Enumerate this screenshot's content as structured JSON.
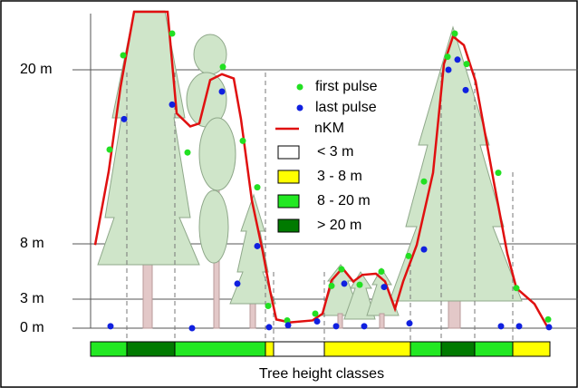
{
  "chart_data": {
    "type": "scatter",
    "xlabel": "Tree height classes",
    "xlim": [
      0,
      510
    ],
    "ylim": [
      0,
      24
    ],
    "yticks": [
      {
        "value": 0,
        "label": "0 m"
      },
      {
        "value": 3,
        "label": "3 m"
      },
      {
        "value": 8,
        "label": "8 m"
      },
      {
        "value": 20,
        "label": "20 m"
      }
    ],
    "grid": true,
    "series": [
      {
        "name": "first pulse",
        "type": "scatter",
        "color": "#22e022",
        "x": [
          21,
          36,
          90,
          107,
          146,
          168,
          184,
          196,
          217,
          248,
          266,
          277,
          297,
          321,
          351,
          368,
          394,
          402,
          415,
          450,
          470,
          505
        ],
        "values": [
          14.5,
          21,
          22.5,
          14.3,
          20.2,
          15.1,
          11.9,
          2.3,
          0.8,
          1.5,
          4.2,
          5.7,
          4.3,
          5.5,
          6.9,
          12.3,
          20.9,
          22.5,
          20.4,
          12.9,
          4.0,
          0.9
        ]
      },
      {
        "name": "last pulse",
        "type": "scatter",
        "color": "#1020e0",
        "x": [
          22,
          37,
          90,
          112,
          145,
          184,
          162,
          197,
          218,
          250,
          271,
          280,
          302,
          324,
          352,
          368,
          395,
          405,
          414,
          453,
          473,
          506
        ],
        "values": [
          0.2,
          16.6,
          17.6,
          0,
          18.5,
          7.8,
          4.4,
          0.1,
          0.3,
          0.7,
          0.2,
          4.4,
          0.2,
          4.1,
          0.5,
          7.5,
          20,
          20.7,
          18.6,
          0.2,
          0.2,
          0.1
        ]
      },
      {
        "name": "nKM",
        "type": "line",
        "color": "#e01010",
        "x": [
          5,
          20,
          33,
          48,
          85,
          95,
          110,
          120,
          132,
          145,
          158,
          166,
          178,
          190,
          198,
          205,
          220,
          245,
          256,
          266,
          278,
          290,
          300,
          315,
          325,
          336,
          345,
          360,
          378,
          390,
          400,
          412,
          425,
          445,
          460,
          470,
          490,
          505
        ],
        "values": [
          7.9,
          13,
          18.8,
          24,
          24,
          17,
          16.1,
          16.3,
          19.3,
          19.7,
          19.4,
          16.6,
          11,
          7.3,
          3.8,
          0.9,
          0.6,
          0.8,
          1.5,
          4.7,
          5.8,
          4.6,
          5.2,
          5.3,
          4.6,
          2.0,
          4.6,
          7.9,
          12.9,
          20.4,
          22.3,
          21.7,
          19.2,
          12.3,
          7.1,
          4.0,
          2.5,
          0
        ]
      }
    ],
    "height_classes": {
      "classes": [
        {
          "name": "< 3 m",
          "color": "#ffffff"
        },
        {
          "name": "3 - 8 m",
          "color": "#ffff00"
        },
        {
          "name": "8 - 20 m",
          "color": "#22e822"
        },
        {
          "name": "> 20 m",
          "color": "#007a00"
        }
      ],
      "segments": [
        {
          "class": 2,
          "x": [
            0,
            40
          ]
        },
        {
          "class": 3,
          "x": [
            40,
            93
          ]
        },
        {
          "class": 2,
          "x": [
            93,
            193
          ]
        },
        {
          "class": 1,
          "x": [
            193,
            202
          ]
        },
        {
          "class": 0,
          "x": [
            202,
            258
          ]
        },
        {
          "class": 1,
          "x": [
            258,
            353
          ]
        },
        {
          "class": 2,
          "x": [
            353,
            387
          ]
        },
        {
          "class": 3,
          "x": [
            387,
            424
          ]
        },
        {
          "class": 2,
          "x": [
            424,
            466
          ]
        },
        {
          "class": 1,
          "x": [
            466,
            507
          ]
        }
      ]
    }
  }
}
